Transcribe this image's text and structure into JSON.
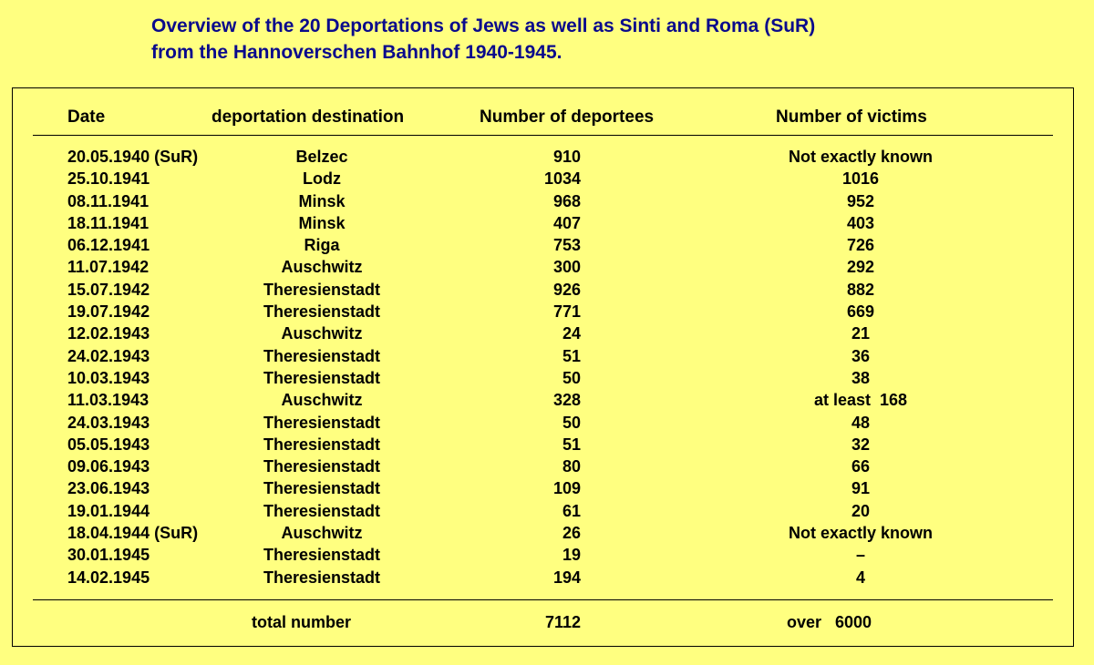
{
  "title": {
    "line1": "Overview of the 20 Deportations of Jews as well as Sinti and Roma (SuR)",
    "line2": "from the Hannoverschen Bahnhof 1940-1945."
  },
  "headers": {
    "date": "Date",
    "destination": "deportation destination",
    "deportees": "Number of deportees",
    "victims": "Number of victims"
  },
  "rows": [
    {
      "date": "20.05.1940 (SuR)",
      "destination": "Belzec",
      "deportees": "910",
      "victims": "Not exactly known"
    },
    {
      "date": "25.10.1941",
      "destination": "Lodz",
      "deportees": "1034",
      "victims": "1016"
    },
    {
      "date": "08.11.1941",
      "destination": "Minsk",
      "deportees": "968",
      "victims": "952"
    },
    {
      "date": "18.11.1941",
      "destination": "Minsk",
      "deportees": "407",
      "victims": "403"
    },
    {
      "date": "06.12.1941",
      "destination": "Riga",
      "deportees": "753",
      "victims": "726"
    },
    {
      "date": "11.07.1942",
      "destination": "Auschwitz",
      "deportees": "300",
      "victims": "292"
    },
    {
      "date": "15.07.1942",
      "destination": "Theresienstadt",
      "deportees": "926",
      "victims": "882"
    },
    {
      "date": "19.07.1942",
      "destination": "Theresienstadt",
      "deportees": "771",
      "victims": "669"
    },
    {
      "date": "12.02.1943",
      "destination": "Auschwitz",
      "deportees": "24",
      "victims": "21"
    },
    {
      "date": "24.02.1943",
      "destination": "Theresienstadt",
      "deportees": "51",
      "victims": "36"
    },
    {
      "date": "10.03.1943",
      "destination": "Theresienstadt",
      "deportees": "50",
      "victims": "38"
    },
    {
      "date": "11.03.1943",
      "destination": "Auschwitz",
      "deportees": "328",
      "victims": "at least  168"
    },
    {
      "date": "24.03.1943",
      "destination": "Theresienstadt",
      "deportees": "50",
      "victims": "48"
    },
    {
      "date": "05.05.1943",
      "destination": "Theresienstadt",
      "deportees": "51",
      "victims": "32"
    },
    {
      "date": "09.06.1943",
      "destination": "Theresienstadt",
      "deportees": "80",
      "victims": "66"
    },
    {
      "date": "23.06.1943",
      "destination": "Theresienstadt",
      "deportees": "109",
      "victims": "91"
    },
    {
      "date": "19.01.1944",
      "destination": "Theresienstadt",
      "deportees": "61",
      "victims": "20"
    },
    {
      "date": "18.04.1944 (SuR)",
      "destination": "Auschwitz",
      "deportees": "26",
      "victims": "Not exactly known"
    },
    {
      "date": "30.01.1945",
      "destination": "Theresienstadt",
      "deportees": "19",
      "victims": "–"
    },
    {
      "date": "14.02.1945",
      "destination": "Theresienstadt",
      "deportees": "194",
      "victims": "4"
    }
  ],
  "total": {
    "label": "total number",
    "deportees": "7112",
    "victims": "over   6000"
  },
  "colors": {
    "background": "#ffff80",
    "title": "#0a0a8c",
    "text": "#000000"
  }
}
